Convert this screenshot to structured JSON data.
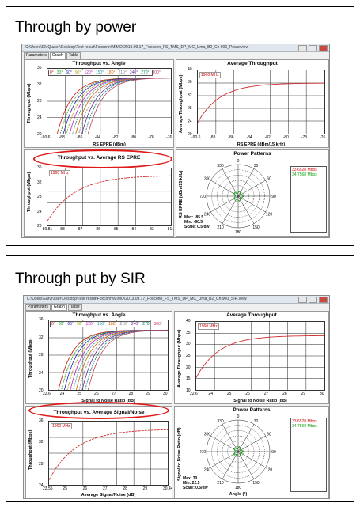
{
  "slides": [
    {
      "heading": "Through by power",
      "window": {
        "title": "C:\\Users\\EMQ\\user\\Desktop\\Test result\\Foxconn\\MIMO\\2013.09.17_Foxconn_FS_TMS_DP_MC_Uma_B2_Ch 900_Powerview",
        "tabs": [
          "Parameters",
          "Graph",
          "Table"
        ],
        "active_tab": "Graph"
      },
      "panels": {
        "angle": {
          "title": "Throughput vs. Angle",
          "ylabel": "Throughput (Mbps)",
          "xlabel": "RS EPRE (dBm)",
          "yticks": [
            "36",
            "32",
            "28",
            "24",
            "20"
          ],
          "xticks": [
            "-90.6",
            "-88",
            "-86",
            "-84",
            "-82",
            "-80",
            "-78",
            "-76"
          ],
          "legend": [
            {
              "label": "0°",
              "color": "#d01010"
            },
            {
              "label": "30°",
              "color": "#20a020"
            },
            {
              "label": "60°",
              "color": "#2020c0"
            },
            {
              "label": "90°",
              "color": "#a0a000"
            },
            {
              "label": "120°",
              "color": "#c020c0"
            },
            {
              "label": "150°",
              "color": "#20a0a0"
            },
            {
              "label": "180°",
              "color": "#d06000"
            },
            {
              "label": "210°",
              "color": "#808080"
            },
            {
              "label": "240°",
              "color": "#6030a0"
            },
            {
              "label": "270°",
              "color": "#008060"
            },
            {
              "label": "300°",
              "color": "#c04060"
            }
          ]
        },
        "average": {
          "title": "Average Throughput",
          "ylabel": "Average Throughput (Mbps)",
          "xlabel": "RS EPRE (dBm/15 kHz)",
          "tag": "1960 MHz",
          "yticks": [
            "40",
            "36",
            "32",
            "28",
            "24",
            "20"
          ],
          "xticks": [
            "-90.6",
            "-88",
            "-86",
            "-84",
            "-82",
            "-80",
            "-78",
            "-76"
          ]
        },
        "vsavg": {
          "title": "Throughput vs. Average RS EPRE",
          "ylabel": "Throughput (Mbps)",
          "tag": "1960 MHz",
          "yticks": [
            "36",
            "32",
            "28",
            "24",
            "20"
          ],
          "xticks": [
            "-89.81",
            "-88",
            "-87",
            "-86",
            "-85",
            "-84",
            "-83",
            "-81.52"
          ]
        },
        "power": {
          "title": "Power Patterns",
          "ylabel": "RS EPRE (dBm/15 kHz)",
          "angles": [
            "0",
            "30",
            "60",
            "90",
            "120",
            "150",
            "180",
            "210",
            "240",
            "270",
            "300",
            "330"
          ],
          "info": [
            "Max: -85.5",
            "Min: -90.5",
            "Scale: 0.5/div"
          ],
          "values": [
            {
              "label": "33.6528 Mbps",
              "color": "#d01010"
            },
            {
              "label": "34.7568 Mbps",
              "color": "#10a010"
            }
          ]
        }
      }
    },
    {
      "heading": "Through put by SIR",
      "window": {
        "title": "C:\\Users\\EMQ\\user\\Desktop\\Test result\\Foxconn\\MIMO\\2013.09.17_Foxconn_FS_TMS_DP_MC_Uma_B2_Ch 900_SIR.view",
        "tabs": [
          "Parameters",
          "Graph",
          "Table"
        ],
        "active_tab": "Graph"
      },
      "panels": {
        "angle": {
          "title": "Throughput vs. Angle",
          "ylabel": "Throughput (Mbps)",
          "xlabel": "Signal to Noise Ratio (dB)",
          "yticks": [
            "36",
            "32",
            "28",
            "24",
            "20"
          ],
          "xticks": [
            "22.6",
            "24",
            "25",
            "26",
            "27",
            "28",
            "29",
            "30"
          ],
          "legend": [
            {
              "label": "0°",
              "color": "#d01010"
            },
            {
              "label": "30°",
              "color": "#20a020"
            },
            {
              "label": "60°",
              "color": "#2020c0"
            },
            {
              "label": "90°",
              "color": "#a0a000"
            },
            {
              "label": "120°",
              "color": "#c020c0"
            },
            {
              "label": "150°",
              "color": "#20a0a0"
            },
            {
              "label": "180°",
              "color": "#d06000"
            },
            {
              "label": "210°",
              "color": "#808080"
            },
            {
              "label": "240°",
              "color": "#6030a0"
            },
            {
              "label": "270°",
              "color": "#008060"
            },
            {
              "label": "300°",
              "color": "#c04060"
            }
          ]
        },
        "average": {
          "title": "Average Throughput",
          "ylabel": "Average Throughput (Mbps)",
          "xlabel": "Signal to Noise Ratio (dB)",
          "tag": "1960 MHz",
          "yticks": [
            "40",
            "35",
            "30",
            "25",
            "20",
            "15",
            "10"
          ],
          "xticks": [
            "22.6",
            "24",
            "25",
            "26",
            "27",
            "28",
            "29",
            "30"
          ]
        },
        "vsavg": {
          "title": "Throughput vs. Average Signal/Noise",
          "ylabel": "Throughput (Mbps)",
          "xlabel": "Average Signal/Noise (dB)",
          "tag": "1960 MHz",
          "yticks": [
            "36",
            "32",
            "28",
            "24"
          ],
          "xticks": [
            "23.55",
            "25",
            "26",
            "27",
            "28",
            "29",
            "30.44"
          ]
        },
        "power": {
          "title": "Power Patterns",
          "ylabel": "Signal to Noise Ratio (dB)",
          "xlabel": "Angle (°)",
          "angles": [
            "0",
            "30",
            "60",
            "90",
            "120",
            "150",
            "180",
            "210",
            "240",
            "270",
            "300",
            "330"
          ],
          "info": [
            "Max: 30",
            "Min: 22.5",
            "Scale: 0.5/div"
          ],
          "values": [
            {
              "label": "33.6528 Mbps",
              "color": "#d01010"
            },
            {
              "label": "34.7568 Mbps",
              "color": "#10a010"
            }
          ]
        }
      }
    }
  ]
}
